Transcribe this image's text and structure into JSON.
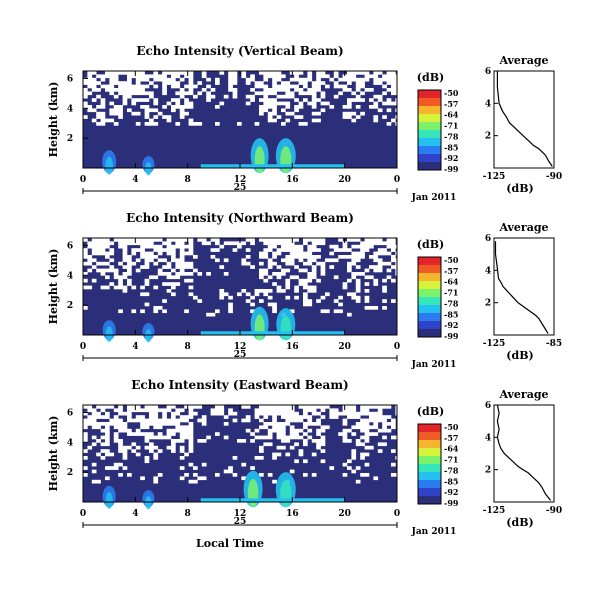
{
  "colors": {
    "background_echo": "#2b2f7a",
    "colormap": [
      "#2b2f7a",
      "#2f43c9",
      "#2a7cf0",
      "#23c0f0",
      "#35e6b8",
      "#7cf26b",
      "#d6f23a",
      "#f6b52c",
      "#f05a25",
      "#e3242b"
    ]
  },
  "shared": {
    "time_ticks": [
      "0",
      "4",
      "8",
      "12",
      "16",
      "20",
      "0"
    ],
    "height_ticks": [
      "6",
      "4",
      "2"
    ],
    "ylabel": "Height (km)",
    "date_day": "25",
    "date_month": "Jan 2011",
    "colorbar_unit": "(dB)",
    "average_title": "Average",
    "average_xlabel": "(dB)",
    "average_height_ticks": [
      "6",
      "4",
      "2"
    ],
    "xlabel_bottom": "Local Time"
  },
  "chart_data": [
    {
      "type": "heatmap",
      "title": "Echo Intensity (Vertical Beam)",
      "xlabel": "",
      "ylabel": "Height (km)",
      "xlim": [
        0,
        24
      ],
      "ylim": [
        0,
        6.5
      ],
      "colorbar_ticks": [
        "-50",
        "-57",
        "-64",
        "-71",
        "-78",
        "-85",
        "-92",
        "-99"
      ],
      "echo": [
        {
          "t": 2,
          "h": 1.0,
          "dh": 0.6,
          "v": -80
        },
        {
          "t": 5,
          "h": 0.8,
          "dh": 0.4,
          "v": -82
        },
        {
          "t": 13.5,
          "h": 1.4,
          "dh": 1.0,
          "v": -72
        },
        {
          "t": 15.5,
          "h": 1.2,
          "dh": 1.2,
          "v": -74
        }
      ]
    },
    {
      "type": "heatmap",
      "title": "Echo Intensity (Northward Beam)",
      "xlabel": "",
      "ylabel": "Height (km)",
      "xlim": [
        0,
        24
      ],
      "ylim": [
        0,
        6.5
      ],
      "colorbar_ticks": [
        "-50",
        "-57",
        "-64",
        "-71",
        "-78",
        "-85",
        "-92",
        "-99"
      ],
      "echo": [
        {
          "t": 2,
          "h": 0.9,
          "dh": 0.5,
          "v": -80
        },
        {
          "t": 5,
          "h": 0.8,
          "dh": 0.4,
          "v": -82
        },
        {
          "t": 13.5,
          "h": 1.3,
          "dh": 1.0,
          "v": -74
        },
        {
          "t": 15.5,
          "h": 1.1,
          "dh": 1.1,
          "v": -76
        }
      ]
    },
    {
      "type": "heatmap",
      "title": "Echo Intensity (Eastward Beam)",
      "xlabel": "Local Time",
      "ylabel": "Height (km)",
      "xlim": [
        0,
        24
      ],
      "ylim": [
        0,
        6.5
      ],
      "colorbar_ticks": [
        "-50",
        "-57",
        "-64",
        "-71",
        "-78",
        "-85",
        "-92",
        "-99"
      ],
      "echo": [
        {
          "t": 2,
          "h": 1.0,
          "dh": 0.5,
          "v": -80
        },
        {
          "t": 5,
          "h": 0.8,
          "dh": 0.4,
          "v": -82
        },
        {
          "t": 13,
          "h": 1.4,
          "dh": 1.1,
          "v": -72
        },
        {
          "t": 15.5,
          "h": 1.2,
          "dh": 1.2,
          "v": -75
        }
      ]
    },
    {
      "type": "line",
      "title": "Average",
      "xlabel": "(dB)",
      "ylabel": "",
      "xlim": [
        -125,
        -90
      ],
      "ylim": [
        0,
        6
      ],
      "xticks": [
        "-125",
        "-90"
      ],
      "x": [
        -123,
        -123,
        -122,
        -120,
        -118,
        -117,
        -116,
        -113,
        -110,
        -108,
        -106,
        -104,
        -102,
        -99,
        -97,
        -95,
        -93,
        -91
      ],
      "y": [
        6.0,
        5.0,
        4.0,
        3.5,
        3.2,
        3.0,
        2.8,
        2.5,
        2.2,
        2.0,
        1.8,
        1.6,
        1.4,
        1.2,
        1.0,
        0.8,
        0.4,
        0.1
      ]
    },
    {
      "type": "line",
      "title": "Average",
      "xlabel": "(dB)",
      "ylabel": "",
      "xlim": [
        -125,
        -85
      ],
      "ylim": [
        0,
        6
      ],
      "xticks": [
        "-125",
        "-85"
      ],
      "x": [
        -124,
        -124,
        -123,
        -122,
        -120,
        -119,
        -117,
        -115,
        -112,
        -109,
        -106,
        -103,
        -100,
        -97,
        -95,
        -93,
        -91,
        -89
      ],
      "y": [
        5.8,
        5.0,
        4.3,
        3.5,
        3.2,
        3.0,
        2.8,
        2.6,
        2.3,
        2.0,
        1.8,
        1.6,
        1.4,
        1.2,
        1.0,
        0.7,
        0.4,
        0.1
      ]
    },
    {
      "type": "line",
      "title": "Average",
      "xlabel": "(dB)",
      "ylabel": "",
      "xlim": [
        -125,
        -90
      ],
      "ylim": [
        0,
        6
      ],
      "xticks": [
        "-125",
        "-90"
      ],
      "x": [
        -123,
        -122,
        -123,
        -122,
        -123,
        -122,
        -121,
        -119,
        -117,
        -114,
        -111,
        -108,
        -105,
        -102,
        -99,
        -97,
        -95,
        -92
      ],
      "y": [
        6.0,
        5.5,
        5.0,
        4.5,
        4.0,
        3.6,
        3.3,
        3.0,
        2.8,
        2.5,
        2.2,
        2.0,
        1.8,
        1.5,
        1.2,
        0.9,
        0.5,
        0.1
      ]
    }
  ]
}
